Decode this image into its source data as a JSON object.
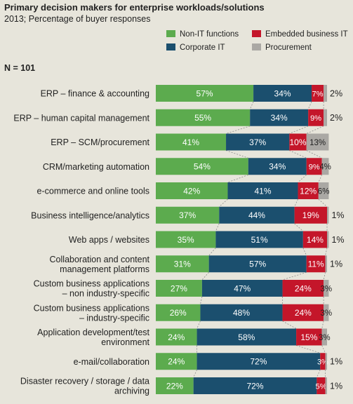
{
  "title": "Primary decision makers for enterprise workloads/solutions",
  "subtitle": "2013; Percentage of buyer responses",
  "n_label": "N = 101",
  "colors": {
    "non_it": "#5cab4e",
    "corporate_it": "#1b4f6e",
    "embedded": "#c4162a",
    "procurement": "#aaa8a4"
  },
  "chart_data": {
    "type": "bar",
    "orientation": "horizontal",
    "stacked": true,
    "unit": "%",
    "categories": [
      [
        "ERP – finance & accounting"
      ],
      [
        "ERP – human capital management"
      ],
      [
        "ERP – SCM/procurement"
      ],
      [
        "CRM/marketing automation"
      ],
      [
        "e-commerce and online tools"
      ],
      [
        "Business intelligence/analytics"
      ],
      [
        "Web apps / websites"
      ],
      [
        "Collaboration and content",
        "management platforms"
      ],
      [
        "Custom business applications",
        "– non industry-specific"
      ],
      [
        "Custom business applications",
        "– industry-specific"
      ],
      [
        "Application development/test",
        "environment"
      ],
      [
        "e-mail/collaboration"
      ],
      [
        "Disaster recovery / storage / data",
        "archiving"
      ]
    ],
    "series": [
      {
        "name": "Non-IT functions",
        "color": "#5cab4e",
        "values": [
          57,
          55,
          41,
          54,
          42,
          37,
          35,
          31,
          27,
          26,
          24,
          24,
          22
        ]
      },
      {
        "name": "Corporate IT",
        "color": "#1b4f6e",
        "values": [
          34,
          34,
          37,
          34,
          41,
          44,
          51,
          57,
          47,
          48,
          58,
          72,
          72
        ]
      },
      {
        "name": "Embedded business IT",
        "color": "#c4162a",
        "values": [
          7,
          9,
          10,
          9,
          12,
          19,
          14,
          11,
          24,
          24,
          15,
          3,
          5
        ]
      },
      {
        "name": "Procurement",
        "color": "#aaa8a4",
        "values": [
          2,
          2,
          13,
          4,
          6,
          1,
          1,
          1,
          3,
          3,
          3,
          1,
          1
        ]
      }
    ],
    "legend_position": "top-right",
    "xlim": [
      0,
      100
    ]
  }
}
